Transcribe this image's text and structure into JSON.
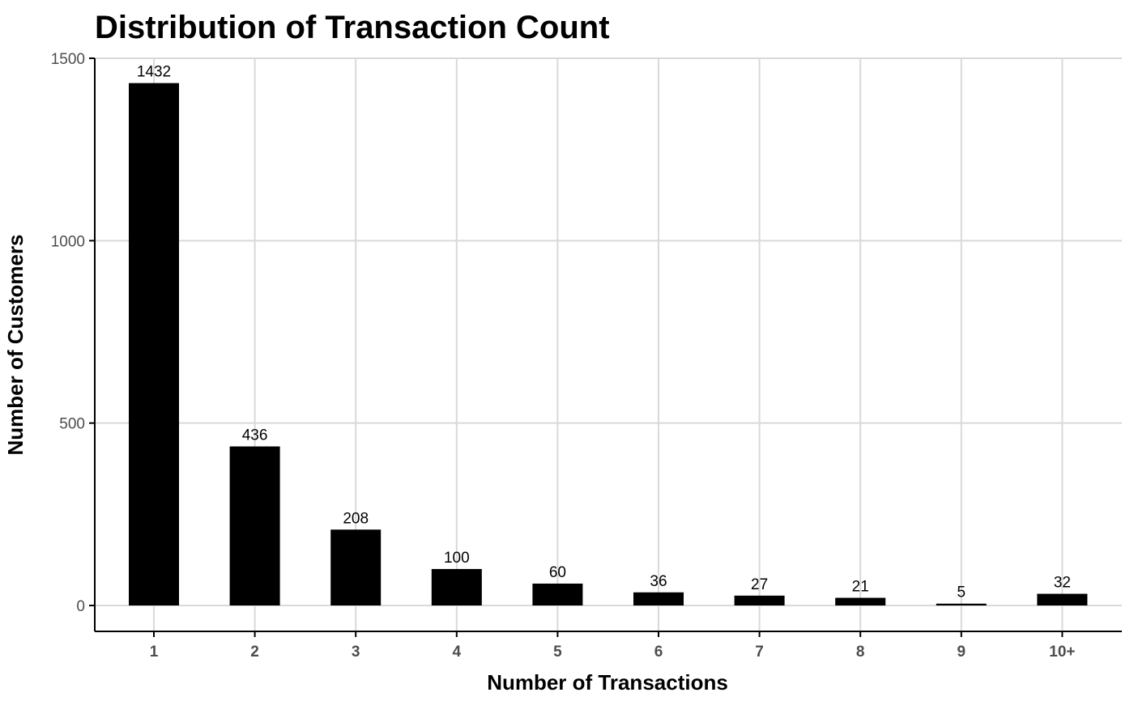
{
  "chart_data": {
    "type": "bar",
    "title": "Distribution of Transaction Count",
    "xlabel": "Number of Transactions",
    "ylabel": "Number of Customers",
    "categories": [
      "1",
      "2",
      "3",
      "4",
      "5",
      "6",
      "7",
      "8",
      "9",
      "10+"
    ],
    "values": [
      1432,
      436,
      208,
      100,
      60,
      36,
      27,
      21,
      5,
      32
    ],
    "data_labels": [
      "1432",
      "436",
      "208",
      "100",
      "60",
      "36",
      "27",
      "21",
      "5",
      "32"
    ],
    "y_ticks": [
      0,
      500,
      1000,
      1500
    ],
    "y_tick_labels": [
      "0",
      "500",
      "1000",
      "1500"
    ],
    "ylim": [
      -70,
      1500
    ],
    "grid": true,
    "bar_color": "#000000",
    "grid_color": "#d9d9d9"
  }
}
